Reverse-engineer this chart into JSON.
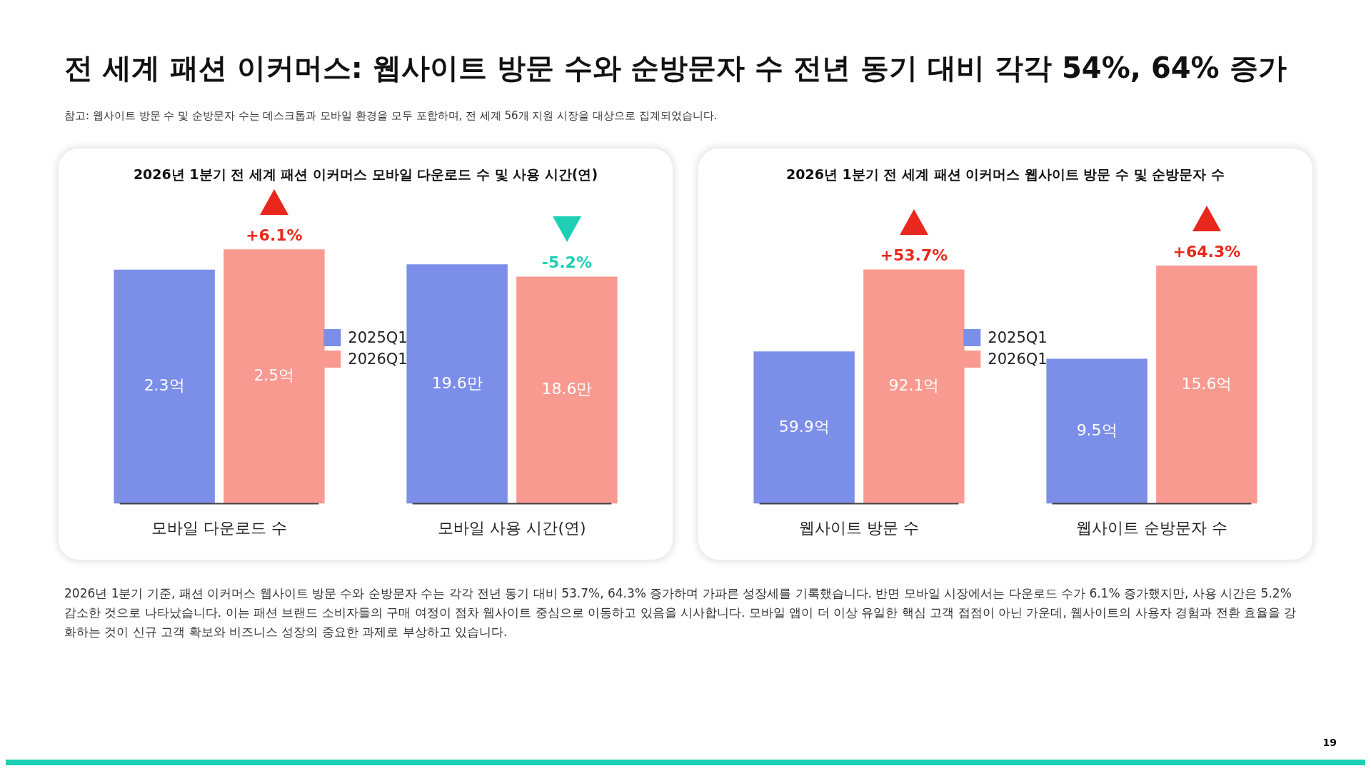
{
  "chart_data": [
    {
      "type": "bar",
      "title": "2026년 1분기 전 세계 패션 이커머스 모바일 다운로드 수 및 사용 시간(연)",
      "legend": "center",
      "categories": [
        "모바일 다운로드 수",
        "모바일 사용 시간(연)"
      ],
      "series": [
        {
          "name": "2025Q1",
          "color": "#7b8ee8",
          "values": [
            2.3,
            null
          ],
          "value_labels": [
            "2.3억",
            null
          ]
        },
        {
          "name": "2026Q1",
          "color": "#f99a90",
          "values": [
            2.5,
            null
          ],
          "value_labels": [
            "2.5억",
            null
          ]
        },
        {
          "color": "#7b8ee8",
          "axis": "y2",
          "values": [
            null,
            19.6
          ],
          "value_labels": [
            null,
            "19.6만"
          ]
        },
        {
          "color": "#f99a90",
          "axis": "y2",
          "values": [
            null,
            18.6
          ],
          "value_labels": [
            null,
            "18.6만"
          ]
        }
      ],
      "annotations": [
        "전 세계 패션 이커머스: 웹사이트 방문 수와 순방문자 수 전년 동기 대비 각각 54%, 64% 증가",
        "참고: 웹사이트 방문 수 및 순방문자 수는 데스크톱과 모바일 환경을 모두 포함하며, 전 세계 56개 지원 시장을 대상으로 집계되었습니다.",
        "+6.1%",
        "-5.2%"
      ]
    },
    {
      "type": "bar",
      "title": "2026년 1분기 전 세계 패션 이커머스 웹사이트 방문 수 및 순방문자 수",
      "legend": "center",
      "categories": [
        "웹사이트 방문 수",
        "웹사이트 순방문자 수"
      ],
      "series": [
        {
          "name": "2025Q1",
          "color": "#7b8ee8",
          "values": [
            59.9,
            null
          ],
          "value_labels": [
            "59.9억",
            null
          ]
        },
        {
          "name": "2026Q1",
          "color": "#f99a90",
          "values": [
            92.1,
            null
          ],
          "value_labels": [
            "92.1억",
            null
          ]
        },
        {
          "color": "#7b8ee8",
          "axis": "y2",
          "values": [
            null,
            9.5
          ],
          "value_labels": [
            null,
            "9.5억"
          ]
        },
        {
          "color": "#f99a90",
          "axis": "y2",
          "values": [
            null,
            15.6
          ],
          "value_labels": [
            null,
            "15.6억"
          ]
        }
      ],
      "annotations": [
        "2026년 1분기 기준, 패션 이커머스 웹사이트 방문 수와 순방문자 수는 각각 전년 동기 대비 53.7%, 64.3% 증가하며 가파른 성장세를 기록했습니다. 반면 모바일 시장에서는 다운로드 수가 6.1% 증가했지만, 사용 시간은 5.2% 감소한 것으로 나타났습니다. 이는 패션 브랜드 소비자들의 구매 여정이 점차 웹사이트 중심으로 이동하고 있음을 시사합니다. 모바일 앱이 더 이상 유일한 핵심 고객 접점이 아닌 가운데, 웹사이트의 사용자 경험과 전환 효율을 강화하는 것이 신규 고객 확보와 비즈니스 성장의 중요한 과제로 부상하고 있습니다.",
        "19",
        "+53.7%",
        "+64.3%"
      ]
    }
  ]
}
